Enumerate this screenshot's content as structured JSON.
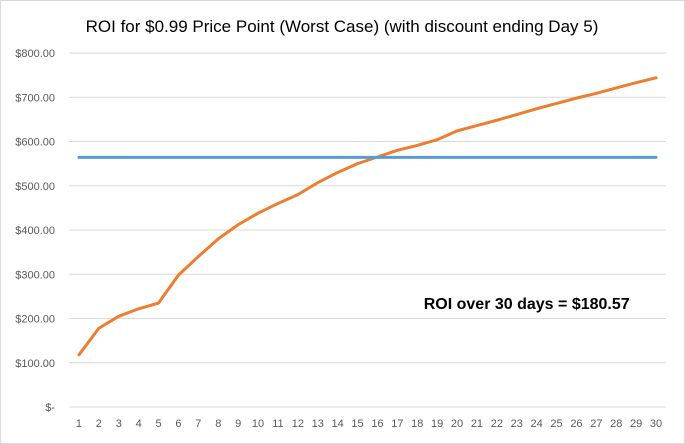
{
  "chart_data": {
    "type": "line",
    "title": "ROI for $0.99 Price Point (Worst Case) (with discount ending Day 5)",
    "xlabel": "",
    "ylabel": "",
    "x": [
      1,
      2,
      3,
      4,
      5,
      6,
      7,
      8,
      9,
      10,
      11,
      12,
      13,
      14,
      15,
      16,
      17,
      18,
      19,
      20,
      21,
      22,
      23,
      24,
      25,
      26,
      27,
      28,
      29,
      30
    ],
    "x_tick_labels": [
      "1",
      "2",
      "3",
      "4",
      "5",
      "6",
      "7",
      "8",
      "9",
      "10",
      "11",
      "12",
      "13",
      "14",
      "15",
      "16",
      "17",
      "18",
      "19",
      "20",
      "21",
      "22",
      "23",
      "24",
      "25",
      "26",
      "27",
      "28",
      "29",
      "30"
    ],
    "y_tick_values": [
      0,
      100,
      200,
      300,
      400,
      500,
      600,
      700,
      800
    ],
    "y_tick_labels": [
      "$-",
      "$100.00",
      "$200.00",
      "$300.00",
      "$400.00",
      "$500.00",
      "$600.00",
      "$700.00",
      "$800.00"
    ],
    "ylim": [
      0,
      800
    ],
    "grid": true,
    "series": [
      {
        "color": "#ed7d31",
        "values": [
          118,
          178,
          205,
          222,
          235,
          298,
          340,
          380,
          412,
          438,
          460,
          480,
          507,
          530,
          550,
          565,
          580,
          591,
          604,
          624,
          636,
          648,
          661,
          674,
          686,
          698,
          709,
          721,
          733,
          744
        ]
      },
      {
        "color": "#5b9bd5",
        "values": [
          564,
          564,
          564,
          564,
          564,
          564,
          564,
          564,
          564,
          564,
          564,
          564,
          564,
          564,
          564,
          564,
          564,
          564,
          564,
          564,
          564,
          564,
          564,
          564,
          564,
          564,
          564,
          564,
          564,
          564
        ]
      }
    ],
    "annotations": [
      {
        "text": "ROI over 30 days = $180.57",
        "x": 23.5,
        "y": 222
      }
    ]
  }
}
